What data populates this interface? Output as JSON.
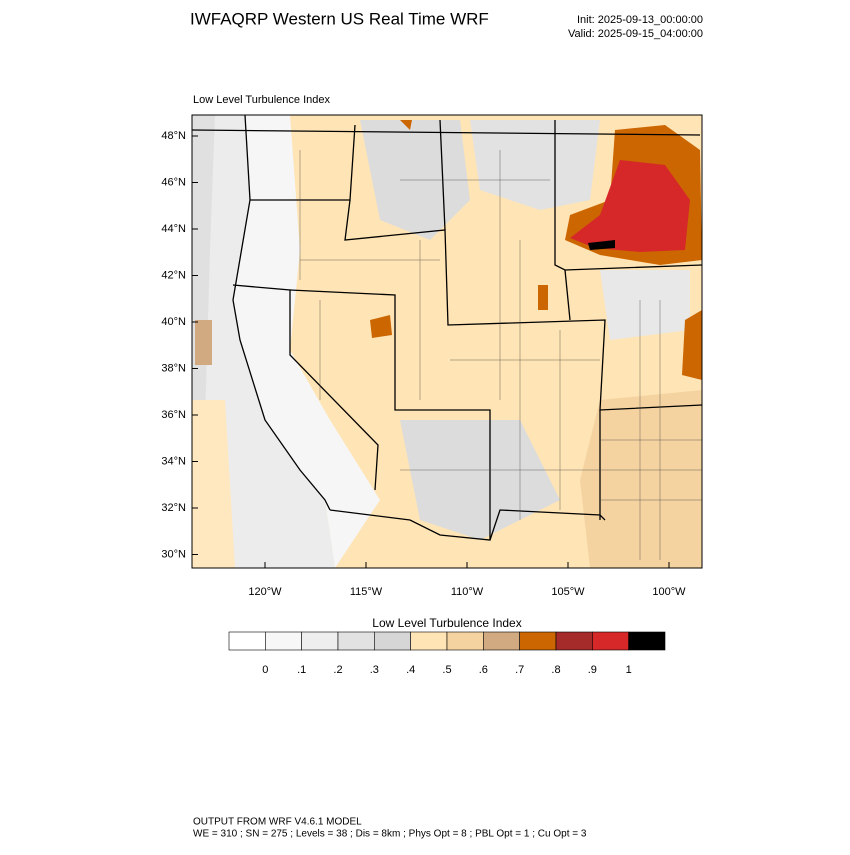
{
  "header": {
    "title": "IWFAQRP Western US Real Time WRF",
    "init": "Init: 2025-09-13_00:00:00",
    "valid": "Valid: 2025-09-15_04:00:00"
  },
  "map": {
    "title": "Low Level Turbulence Index",
    "lat_labels": [
      "48°N",
      "46°N",
      "44°N",
      "42°N",
      "40°N",
      "38°N",
      "36°N",
      "34°N",
      "32°N",
      "30°N"
    ],
    "lon_labels": [
      "120°W",
      "115°W",
      "110°W",
      "105°W",
      "100°W"
    ]
  },
  "colorbar": {
    "title": "Low Level Turbulence Index",
    "colors": [
      "#ffffff",
      "#f7f7f7",
      "#eeeeee",
      "#e2e2e2",
      "#d6d6d6",
      "#ffe4b5",
      "#f5d3a0",
      "#d2aa82",
      "#cc6600",
      "#a52a2a",
      "#d62828",
      "#000000"
    ],
    "labels": [
      "0",
      ".1",
      ".2",
      ".3",
      ".4",
      ".5",
      ".6",
      ".7",
      ".8",
      ".9",
      "1"
    ]
  },
  "footer": {
    "line1": "OUTPUT FROM WRF V4.6.1 MODEL",
    "line2": "WE = 310 ; SN = 275 ; Levels = 38 ; Dis = 8km ; Phys Opt = 8 ; PBL Opt = 1 ; Cu Opt = 3"
  }
}
